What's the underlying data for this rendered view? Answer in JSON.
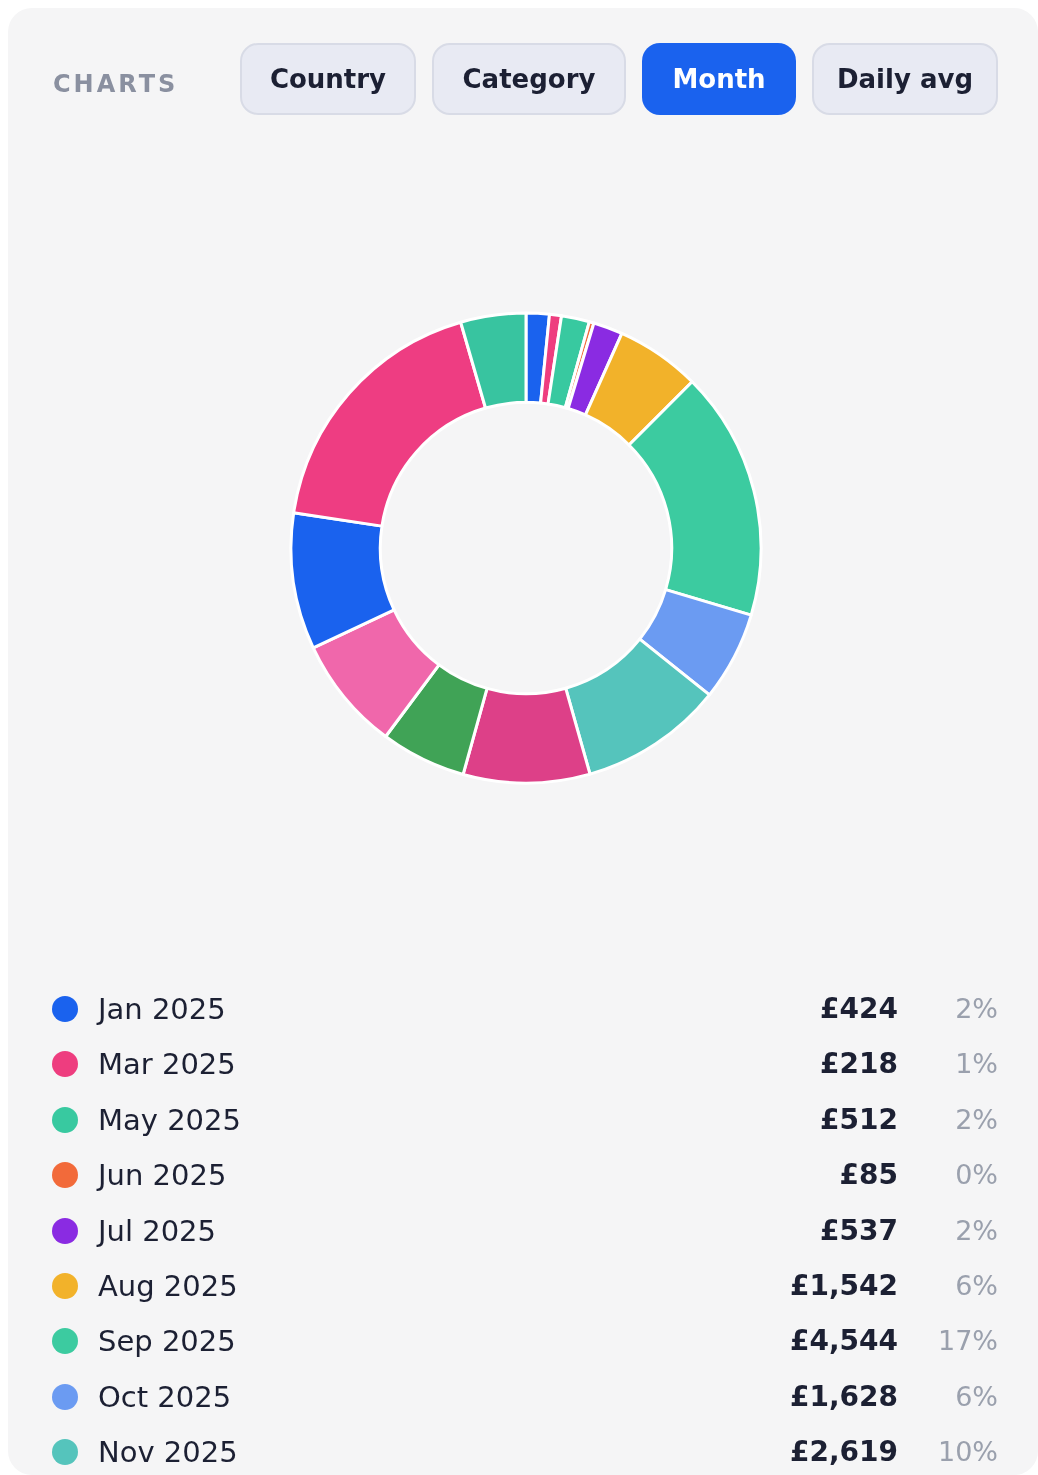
{
  "chart_data": {
    "type": "donut",
    "title": "CHARTS",
    "categories": [
      "Jan 2025",
      "Mar 2025",
      "May 2025",
      "Jun 2025",
      "Jul 2025",
      "Aug 2025",
      "Sep 2025",
      "Oct 2025",
      "Nov 2025",
      null,
      null,
      null,
      null,
      null,
      null
    ],
    "values": [
      424,
      218,
      512,
      85,
      537,
      1542,
      4544,
      1628,
      2619,
      2310,
      1560,
      2080,
      2490,
      4810,
      1190
    ],
    "value_labels": [
      "£424",
      "£218",
      "£512",
      "£85",
      "£537",
      "£1,542",
      "£4,544",
      "£1,628",
      "£2,619",
      null,
      null,
      null,
      null,
      null,
      null
    ],
    "colors": [
      "#1a62ee",
      "#ee3d7f",
      "#38c9a0",
      "#f26a3a",
      "#8a2be2",
      "#f2b22a",
      "#3ccba0",
      "#6b9bf2",
      "#55c4bc",
      "#dd4088",
      "#40a356",
      "#f067ab",
      "#1a62ee",
      "#ee3d82",
      "#38c4a0"
    ],
    "annotations": [
      "Country",
      "Category",
      "Month",
      "Daily avg",
      "2%",
      "1%",
      "2%",
      "0%",
      "2%",
      "6%",
      "17%",
      "6%",
      "10%"
    ],
    "legend": "bottom"
  }
}
